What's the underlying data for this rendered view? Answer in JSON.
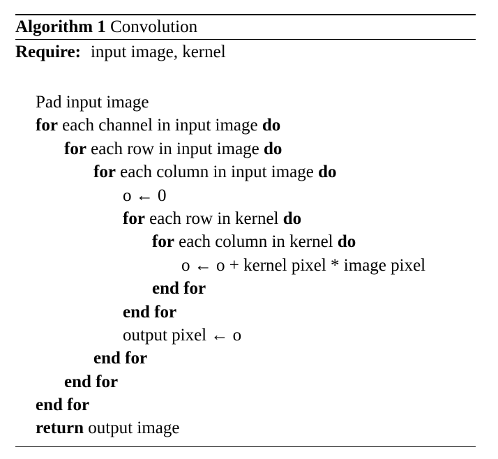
{
  "algorithm": {
    "label": "Algorithm 1",
    "name": "Convolution",
    "require_keyword": "Require:",
    "require_text": "input image, kernel"
  },
  "lines": [
    {
      "indent": 1,
      "kw_start": "",
      "text": "Pad input image",
      "kw_end": ""
    },
    {
      "indent": 1,
      "kw_start": "for",
      "text": "each channel in input image",
      "kw_end": "do"
    },
    {
      "indent": 2,
      "kw_start": "for",
      "text": "each row in input image",
      "kw_end": "do"
    },
    {
      "indent": 3,
      "kw_start": "for",
      "text": "each column in input image",
      "kw_end": "do"
    },
    {
      "indent": 4,
      "kw_start": "",
      "text": "o ← 0",
      "kw_end": ""
    },
    {
      "indent": 4,
      "kw_start": "for",
      "text": "each row in kernel",
      "kw_end": "do"
    },
    {
      "indent": 5,
      "kw_start": "for",
      "text": "each column in kernel",
      "kw_end": "do"
    },
    {
      "indent": 6,
      "kw_start": "",
      "text": "o ← o + kernel pixel * image pixel",
      "kw_end": ""
    },
    {
      "indent": 5,
      "kw_start": "end for",
      "text": "",
      "kw_end": ""
    },
    {
      "indent": 4,
      "kw_start": "end for",
      "text": "",
      "kw_end": ""
    },
    {
      "indent": 4,
      "kw_start": "",
      "text": "output pixel ← o",
      "kw_end": ""
    },
    {
      "indent": 3,
      "kw_start": "end for",
      "text": "",
      "kw_end": ""
    },
    {
      "indent": 2,
      "kw_start": "end for",
      "text": "",
      "kw_end": ""
    },
    {
      "indent": 1,
      "kw_start": "end for",
      "text": "",
      "kw_end": ""
    },
    {
      "indent": 1,
      "kw_start": "return",
      "text": "output image",
      "kw_end": ""
    }
  ]
}
